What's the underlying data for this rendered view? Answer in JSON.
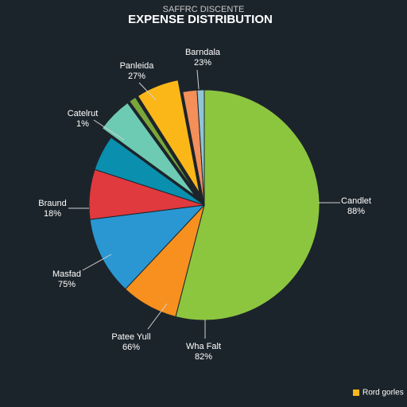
{
  "chart_data": {
    "type": "pie",
    "subtitle": "SAFFRC DISCENTE",
    "title": "EXPENSE DISTRIBUTION",
    "values": [
      54,
      8,
      11,
      7,
      5,
      5,
      1,
      6,
      2,
      1
    ],
    "colors": [
      "#8cc63f",
      "#f7901e",
      "#2a97d2",
      "#e0393e",
      "#0a8fae",
      "#6ecbb3",
      "#7aa63a",
      "#fbb718",
      "#f58f5a",
      "#8fc5d6"
    ],
    "exploded": [
      false,
      false,
      false,
      false,
      false,
      true,
      true,
      true,
      false,
      false
    ],
    "annotations": [
      {
        "name": "Barndala",
        "pct": "23%"
      },
      {
        "name": "Panleida",
        "pct": "27%"
      },
      {
        "name": "Catelrut",
        "pct": "1%"
      },
      {
        "name": "Braund",
        "pct": "18%"
      },
      {
        "name": "Masfad",
        "pct": "75%"
      },
      {
        "name": "Patee Yull",
        "pct": "66%"
      },
      {
        "name": "Wha Falt",
        "pct": "82%"
      },
      {
        "name": "Candlet",
        "pct": "88%"
      }
    ],
    "legend": [
      {
        "name": "Rord gorles",
        "color": "#fbb718"
      }
    ]
  }
}
